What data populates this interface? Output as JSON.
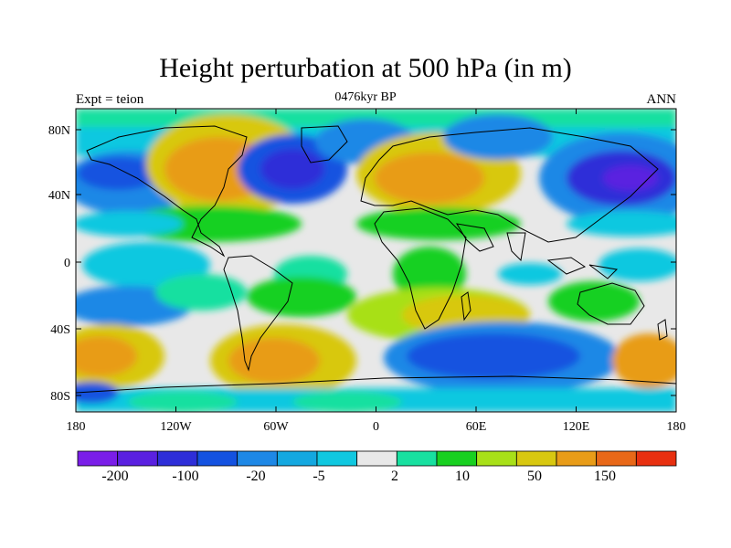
{
  "header": {
    "title": "Height perturbation at 500 hPa (in m)",
    "subtitle": "0476kyr BP",
    "left_label": "Expt = teion",
    "right_label": "ANN"
  },
  "axes": {
    "lat_ticks": [
      "80N",
      "40N",
      "0",
      "40S",
      "80S"
    ],
    "lon_ticks": [
      "180",
      "120W",
      "60W",
      "0",
      "60E",
      "120E",
      "180"
    ]
  },
  "colorbar": {
    "colors": [
      "#7a1ee8",
      "#5a20e0",
      "#2e2ed8",
      "#1452e0",
      "#1e88e6",
      "#14a8e0",
      "#10c8e0",
      "#e8e8e8",
      "#18e0a0",
      "#18d020",
      "#a8e018",
      "#d8c810",
      "#e89c18",
      "#e86818",
      "#e83010"
    ],
    "labels": [
      "-200",
      "-100",
      "-20",
      "-5",
      "2",
      "10",
      "50",
      "150"
    ]
  },
  "map": {
    "background": "#e8e8e8",
    "lon_range": [
      -180,
      180
    ],
    "lat_range": [
      -90,
      90
    ]
  }
}
